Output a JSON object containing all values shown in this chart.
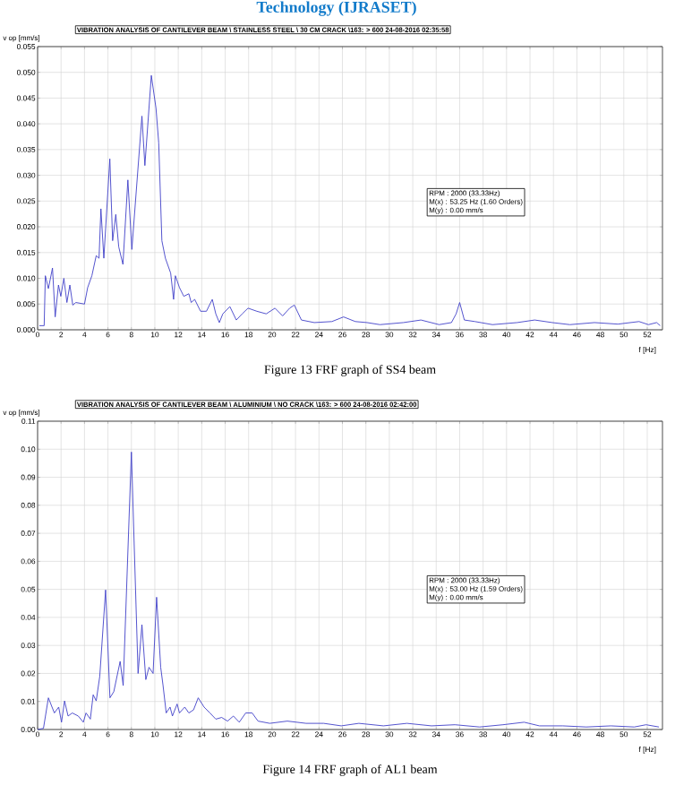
{
  "chart_data": [
    {
      "type": "line",
      "title": "VIBRATION ANALYSIS OF CANTILEVER BEAM \\ STAINLESS STEEL \\ 30 CM CRACK \\163: > 600 24-08-2016 02:35:58",
      "ylabel": "v op [mm/s]",
      "xlabel": "f [Hz]",
      "color": "#4040c8",
      "grid": true,
      "annotations": [
        "Technology (IJRASET)",
        "RPM : 2000 (33.33Hz)",
        "M(x) : 53.25 Hz (1.60 Orders)",
        "M(y) : 0.00 mm/s",
        "Figure 13 FRF graph of SS4 beam"
      ],
      "xlim": [
        0,
        53.3
      ],
      "ylim": [
        0,
        0.055
      ],
      "xticks": [
        0,
        2,
        4,
        6,
        8,
        10,
        12,
        14,
        16,
        18,
        20,
        22,
        24,
        26,
        28,
        30,
        32,
        34,
        36,
        38,
        40,
        42,
        44,
        46,
        48,
        50,
        52
      ],
      "yticks": [
        {
          "value": 0,
          "label": "0.000"
        },
        {
          "value": 0.005,
          "label": "0.005"
        },
        {
          "value": 0.01,
          "label": "0.010"
        },
        {
          "value": 0.015,
          "label": "0.015"
        },
        {
          "value": 0.02,
          "label": "0.020"
        },
        {
          "value": 0.025,
          "label": "0.025"
        },
        {
          "value": 0.03,
          "label": "0.030"
        },
        {
          "value": 0.035,
          "label": "0.035"
        },
        {
          "value": 0.04,
          "label": "0.040"
        },
        {
          "value": 0.045,
          "label": "0.045"
        },
        {
          "value": 0.05,
          "label": "0.050"
        },
        {
          "value": 0.055,
          "label": "0.055"
        }
      ],
      "x": [
        0.15,
        0.56,
        0.66,
        0.92,
        1.27,
        1.5,
        1.78,
        1.98,
        2.24,
        2.5,
        2.75,
        3.0,
        3.26,
        4.0,
        4.27,
        4.63,
        5.0,
        5.24,
        5.4,
        5.65,
        6.16,
        6.4,
        6.67,
        6.92,
        7.28,
        7.7,
        8.04,
        8.9,
        9.15,
        9.7,
        10.1,
        10.33,
        10.6,
        10.9,
        11.35,
        11.6,
        11.75,
        12.1,
        12.47,
        12.9,
        13.1,
        13.4,
        13.9,
        14.4,
        14.9,
        15.2,
        15.5,
        15.8,
        16.4,
        16.95,
        17.45,
        17.95,
        18.7,
        19.5,
        20.25,
        20.9,
        21.5,
        21.9,
        22.5,
        23.6,
        25.1,
        26.1,
        27.1,
        28.1,
        29.2,
        31.2,
        32.7,
        34.25,
        35.3,
        35.7,
        36.0,
        36.4,
        37.3,
        38.8,
        40.9,
        42.4,
        43.9,
        45.4,
        47.5,
        49.5,
        51.3,
        52.1,
        52.8,
        53.1
      ],
      "values": [
        0.0008,
        0.0008,
        0.0105,
        0.008,
        0.012,
        0.0025,
        0.0087,
        0.0065,
        0.01,
        0.0053,
        0.0087,
        0.0048,
        0.0053,
        0.005,
        0.0082,
        0.0105,
        0.0144,
        0.0139,
        0.0235,
        0.0139,
        0.0332,
        0.0173,
        0.0224,
        0.0161,
        0.0127,
        0.0291,
        0.0156,
        0.0415,
        0.0319,
        0.0494,
        0.043,
        0.0363,
        0.0173,
        0.0139,
        0.011,
        0.0059,
        0.0105,
        0.0082,
        0.0065,
        0.007,
        0.0053,
        0.0059,
        0.0036,
        0.0036,
        0.0059,
        0.0031,
        0.0014,
        0.0031,
        0.0045,
        0.0019,
        0.0031,
        0.0042,
        0.0036,
        0.0031,
        0.0042,
        0.0027,
        0.0042,
        0.0048,
        0.0019,
        0.0014,
        0.0016,
        0.0025,
        0.0016,
        0.0014,
        0.001,
        0.0014,
        0.0019,
        0.001,
        0.0014,
        0.0031,
        0.0053,
        0.0019,
        0.0016,
        0.001,
        0.0014,
        0.0019,
        0.0014,
        0.001,
        0.0014,
        0.0011,
        0.0016,
        0.001,
        0.0014,
        0.0008
      ]
    },
    {
      "type": "line",
      "title": "VIBRATION ANALYSIS OF CANTILEVER BEAM \\ ALUMINIUM \\ NO CRACK \\163: > 600 24-08-2016 02:42:00",
      "ylabel": "v op [mm/s]",
      "xlabel": "f [Hz]",
      "color": "#4040c8",
      "grid": true,
      "annotations": [
        "RPM : 2000 (33.33Hz)",
        "M(x) : 53.00 Hz (1.59 Orders)",
        "M(y) : 0.00 mm/s",
        "Figure 14 FRF graph of AL1 beam"
      ],
      "xlim": [
        0,
        53.3
      ],
      "ylim": [
        0,
        0.11
      ],
      "xticks": [
        0,
        2,
        4,
        6,
        8,
        10,
        12,
        14,
        16,
        18,
        20,
        22,
        24,
        26,
        28,
        30,
        32,
        34,
        36,
        38,
        40,
        42,
        44,
        46,
        48,
        50,
        52
      ],
      "yticks": [
        {
          "value": 0,
          "label": "0.00"
        },
        {
          "value": 0.01,
          "label": "0.01"
        },
        {
          "value": 0.02,
          "label": "0.02"
        },
        {
          "value": 0.03,
          "label": "0.03"
        },
        {
          "value": 0.04,
          "label": "0.04"
        },
        {
          "value": 0.05,
          "label": "0.05"
        },
        {
          "value": 0.06,
          "label": "0.06"
        },
        {
          "value": 0.07,
          "label": "0.07"
        },
        {
          "value": 0.08,
          "label": "0.08"
        },
        {
          "value": 0.09,
          "label": "0.09"
        },
        {
          "value": 0.1,
          "label": "0.10"
        },
        {
          "value": 0.11,
          "label": "0.11"
        }
      ],
      "x": [
        0,
        0.5,
        0.92,
        1.43,
        1.8,
        2.04,
        2.3,
        2.6,
        2.96,
        3.47,
        3.9,
        4.13,
        4.5,
        4.74,
        5.0,
        5.3,
        5.8,
        6.17,
        6.5,
        7.04,
        7.3,
        8.0,
        8.57,
        8.9,
        9.23,
        9.5,
        9.85,
        10.15,
        10.5,
        10.7,
        10.97,
        11.3,
        11.5,
        11.9,
        12.1,
        12.55,
        12.9,
        13.3,
        13.7,
        14.2,
        14.7,
        15.2,
        15.7,
        16.2,
        16.7,
        17.2,
        17.75,
        18.3,
        18.8,
        19.8,
        21.3,
        22.9,
        24.4,
        25.9,
        27.4,
        29.5,
        31.5,
        33.6,
        35.6,
        37.7,
        39.7,
        41.5,
        42.8,
        44.8,
        46.8,
        48.9,
        50.9,
        51.9,
        53.0
      ],
      "values": [
        0.0,
        0.0004,
        0.0113,
        0.0059,
        0.008,
        0.0026,
        0.0102,
        0.0048,
        0.0059,
        0.0048,
        0.0026,
        0.0059,
        0.0037,
        0.0124,
        0.0102,
        0.0189,
        0.0498,
        0.0113,
        0.0135,
        0.0243,
        0.0157,
        0.099,
        0.02,
        0.0374,
        0.0178,
        0.0222,
        0.02,
        0.0472,
        0.0222,
        0.0157,
        0.0059,
        0.008,
        0.0048,
        0.0091,
        0.0059,
        0.008,
        0.0059,
        0.007,
        0.0113,
        0.008,
        0.0059,
        0.0037,
        0.0043,
        0.003,
        0.0048,
        0.0026,
        0.0059,
        0.0059,
        0.003,
        0.0022,
        0.003,
        0.0022,
        0.0022,
        0.0013,
        0.0022,
        0.0013,
        0.0022,
        0.0013,
        0.0017,
        0.0009,
        0.0017,
        0.0026,
        0.0013,
        0.0013,
        0.0009,
        0.0013,
        0.0009,
        0.0017,
        0.0009
      ]
    }
  ]
}
